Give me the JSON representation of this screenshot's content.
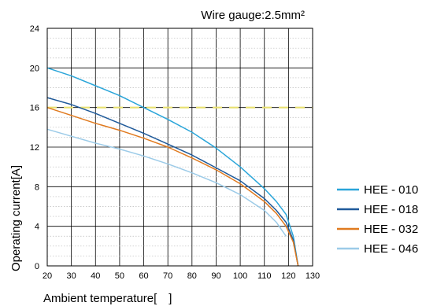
{
  "chart_data": {
    "type": "line",
    "title": "Wire gauge:2.5mm²",
    "xlabel": "Ambient temperature[  ]",
    "ylabel": "Operating current[A]",
    "xlim": [
      20,
      130
    ],
    "ylim": [
      0,
      24
    ],
    "xticks": [
      20,
      30,
      40,
      50,
      60,
      70,
      80,
      90,
      100,
      110,
      120,
      130
    ],
    "yticks": [
      0,
      4,
      8,
      12,
      16,
      20,
      24
    ],
    "grid": {
      "major": true,
      "minor_dotted": true
    },
    "legend_position": "right",
    "reference_line": {
      "y": 16,
      "color": "#e8e070",
      "style": "dashed"
    },
    "series": [
      {
        "name": "HEE - 010",
        "color": "#2aa5d9",
        "x": [
          20,
          30,
          40,
          50,
          60,
          70,
          80,
          90,
          100,
          110,
          115,
          119,
          122,
          124
        ],
        "y": [
          20,
          19.2,
          18.2,
          17.2,
          16.0,
          14.8,
          13.5,
          11.9,
          10.0,
          7.8,
          6.5,
          5.2,
          3.0,
          0
        ]
      },
      {
        "name": "HEE - 018",
        "color": "#1f5a9a",
        "x": [
          20,
          30,
          40,
          50,
          60,
          70,
          80,
          90,
          100,
          110,
          115,
          119,
          122,
          124
        ],
        "y": [
          17,
          16.3,
          15.4,
          14.4,
          13.4,
          12.3,
          11.2,
          9.9,
          8.6,
          6.8,
          5.6,
          4.4,
          2.6,
          0
        ]
      },
      {
        "name": "HEE - 032",
        "color": "#e07a1f",
        "x": [
          20,
          30,
          40,
          50,
          60,
          70,
          80,
          90,
          100,
          110,
          115,
          119,
          122,
          124
        ],
        "y": [
          16,
          15.2,
          14.4,
          13.7,
          12.9,
          12.0,
          10.9,
          9.7,
          8.3,
          6.5,
          5.3,
          4.0,
          2.4,
          0
        ]
      },
      {
        "name": "HEE - 046",
        "color": "#9ccbe8",
        "x": [
          20,
          30,
          40,
          50,
          60,
          70,
          80,
          90,
          100,
          110,
          115,
          119
        ],
        "y": [
          13.8,
          13.1,
          12.4,
          11.8,
          11.1,
          10.3,
          9.4,
          8.4,
          7.2,
          5.6,
          4.4,
          3.0
        ]
      }
    ]
  }
}
